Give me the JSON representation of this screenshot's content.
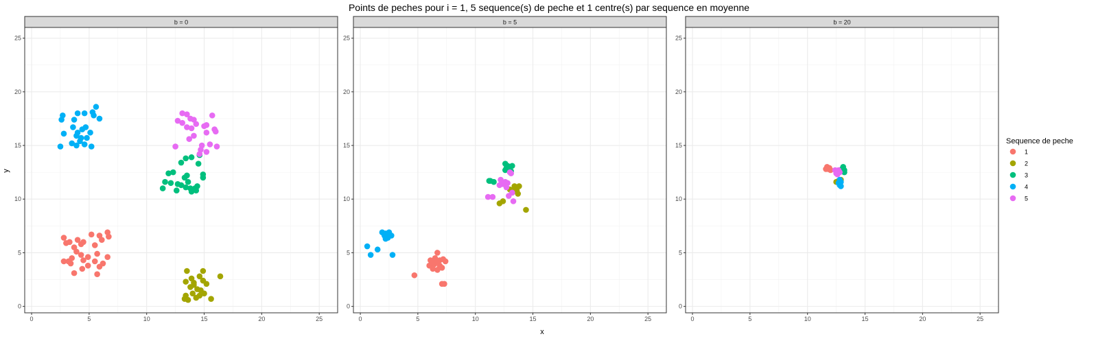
{
  "chart_data": {
    "type": "scatter",
    "title": "Points de peches pour i = 1, 5 sequence(s) de peche et 1 centre(s) par sequence en moyenne",
    "xlabel": "x",
    "ylabel": "y",
    "xlim": [
      -0.6,
      26.6
    ],
    "ylim": [
      -0.6,
      26.0
    ],
    "x_ticks": [
      0,
      5,
      10,
      15,
      20,
      25
    ],
    "y_ticks": [
      0,
      5,
      10,
      15,
      20,
      25
    ],
    "grid": true,
    "legend": {
      "title": "Sequence de peche",
      "placement": "right",
      "entries": [
        "1",
        "2",
        "3",
        "4",
        "5"
      ]
    },
    "colors": {
      "1": "#F8766D",
      "2": "#A3A500",
      "3": "#00BF7D",
      "4": "#00B0F6",
      "5": "#E76BF3"
    },
    "panels": [
      {
        "strip": "b = 0",
        "series": [
          {
            "name": "1",
            "points": [
              [
                2.8,
                6.4
              ],
              [
                3.3,
                6.0
              ],
              [
                4.0,
                6.2
              ],
              [
                4.5,
                6.0
              ],
              [
                5.2,
                6.7
              ],
              [
                5.9,
                6.6
              ],
              [
                6.1,
                6.2
              ],
              [
                6.6,
                6.9
              ],
              [
                6.7,
                6.5
              ],
              [
                3.0,
                5.9
              ],
              [
                3.7,
                5.5
              ],
              [
                4.3,
                5.8
              ],
              [
                5.5,
                5.7
              ],
              [
                3.9,
                5.1
              ],
              [
                4.3,
                4.8
              ],
              [
                4.9,
                4.6
              ],
              [
                5.7,
                4.9
              ],
              [
                2.8,
                4.2
              ],
              [
                3.2,
                4.2
              ],
              [
                3.5,
                4.5
              ],
              [
                4.5,
                4.3
              ],
              [
                5.5,
                4.2
              ],
              [
                6.2,
                4.0
              ],
              [
                6.6,
                4.6
              ],
              [
                3.4,
                4.0
              ],
              [
                4.4,
                3.5
              ],
              [
                5.9,
                3.7
              ],
              [
                3.7,
                3.1
              ],
              [
                5.7,
                3.0
              ],
              [
                4.9,
                3.8
              ]
            ]
          },
          {
            "name": "2",
            "points": [
              [
                13.5,
                3.3
              ],
              [
                14.9,
                3.3
              ],
              [
                13.9,
                2.6
              ],
              [
                14.6,
                2.8
              ],
              [
                14.9,
                2.4
              ],
              [
                16.4,
                2.8
              ],
              [
                13.4,
                2.3
              ],
              [
                14.1,
                2.2
              ],
              [
                15.2,
                2.1
              ],
              [
                13.8,
                1.8
              ],
              [
                14.4,
                1.6
              ],
              [
                14.7,
                1.5
              ],
              [
                14.0,
                1.2
              ],
              [
                14.6,
                1.0
              ],
              [
                13.4,
                1.0
              ],
              [
                15.0,
                1.2
              ],
              [
                15.6,
                0.7
              ],
              [
                13.3,
                0.7
              ],
              [
                14.3,
                0.8
              ],
              [
                13.6,
                0.6
              ],
              [
                14.1,
                2.0
              ]
            ]
          },
          {
            "name": "3",
            "points": [
              [
                13.0,
                13.4
              ],
              [
                13.4,
                13.8
              ],
              [
                13.9,
                13.9
              ],
              [
                14.6,
                14.1
              ],
              [
                14.5,
                13.3
              ],
              [
                11.9,
                12.4
              ],
              [
                12.3,
                12.5
              ],
              [
                13.3,
                12.0
              ],
              [
                13.5,
                12.2
              ],
              [
                14.9,
                12.0
              ],
              [
                14.9,
                12.3
              ],
              [
                11.6,
                11.6
              ],
              [
                12.1,
                11.5
              ],
              [
                12.7,
                11.4
              ],
              [
                13.0,
                11.3
              ],
              [
                13.4,
                11.1
              ],
              [
                13.8,
                11.0
              ],
              [
                14.2,
                11.0
              ],
              [
                14.4,
                11.2
              ],
              [
                11.4,
                11.0
              ],
              [
                12.6,
                10.8
              ],
              [
                13.9,
                10.7
              ],
              [
                14.3,
                10.8
              ],
              [
                13.6,
                11.6
              ]
            ]
          },
          {
            "name": "4",
            "points": [
              [
                2.6,
                17.4
              ],
              [
                2.7,
                17.8
              ],
              [
                3.7,
                17.4
              ],
              [
                4.0,
                18.0
              ],
              [
                4.6,
                18.0
              ],
              [
                5.3,
                18.1
              ],
              [
                5.6,
                18.6
              ],
              [
                5.9,
                17.5
              ],
              [
                3.6,
                16.7
              ],
              [
                4.0,
                16.2
              ],
              [
                4.4,
                16.5
              ],
              [
                4.7,
                16.7
              ],
              [
                5.1,
                16.2
              ],
              [
                2.8,
                16.1
              ],
              [
                3.9,
                15.9
              ],
              [
                4.3,
                15.7
              ],
              [
                4.8,
                15.7
              ],
              [
                3.5,
                15.2
              ],
              [
                3.9,
                15.0
              ],
              [
                4.6,
                15.1
              ],
              [
                5.2,
                14.9
              ],
              [
                2.5,
                14.9
              ],
              [
                4.2,
                15.4
              ],
              [
                5.4,
                17.8
              ]
            ]
          },
          {
            "name": "5",
            "points": [
              [
                13.1,
                18.0
              ],
              [
                13.5,
                17.9
              ],
              [
                13.8,
                17.5
              ],
              [
                15.7,
                17.8
              ],
              [
                14.1,
                17.4
              ],
              [
                14.3,
                17.0
              ],
              [
                12.7,
                17.3
              ],
              [
                13.1,
                17.1
              ],
              [
                15.0,
                16.8
              ],
              [
                15.2,
                16.9
              ],
              [
                15.9,
                16.5
              ],
              [
                16.0,
                16.3
              ],
              [
                13.5,
                16.7
              ],
              [
                13.9,
                16.6
              ],
              [
                15.2,
                16.2
              ],
              [
                14.1,
                15.9
              ],
              [
                13.7,
                15.6
              ],
              [
                15.5,
                15.1
              ],
              [
                14.8,
                15.0
              ],
              [
                16.1,
                14.9
              ],
              [
                12.5,
                14.9
              ],
              [
                14.7,
                14.6
              ],
              [
                14.6,
                14.2
              ],
              [
                15.2,
                14.4
              ]
            ]
          }
        ]
      },
      {
        "strip": "b = 5",
        "series": [
          {
            "name": "1",
            "points": [
              [
                6.7,
                5.0
              ],
              [
                6.1,
                4.3
              ],
              [
                6.5,
                4.5
              ],
              [
                6.9,
                4.3
              ],
              [
                7.2,
                4.4
              ],
              [
                7.4,
                4.2
              ],
              [
                6.0,
                3.8
              ],
              [
                6.4,
                3.9
              ],
              [
                6.9,
                3.8
              ],
              [
                7.1,
                3.6
              ],
              [
                6.3,
                3.5
              ],
              [
                6.7,
                3.4
              ],
              [
                4.7,
                2.9
              ],
              [
                7.1,
                2.1
              ],
              [
                7.3,
                2.1
              ],
              [
                6.6,
                4.1
              ],
              [
                6.2,
                4.1
              ]
            ]
          },
          {
            "name": "2",
            "points": [
              [
                13.4,
                11.2
              ],
              [
                13.8,
                11.2
              ],
              [
                13.0,
                10.9
              ],
              [
                13.6,
                10.8
              ],
              [
                13.2,
                10.6
              ],
              [
                13.7,
                10.5
              ],
              [
                12.4,
                9.8
              ],
              [
                12.1,
                9.6
              ],
              [
                14.4,
                9.0
              ],
              [
                13.4,
                10.8
              ]
            ]
          },
          {
            "name": "3",
            "points": [
              [
                12.6,
                13.3
              ],
              [
                12.8,
                13.1
              ],
              [
                13.2,
                13.1
              ],
              [
                12.9,
                12.8
              ],
              [
                12.6,
                12.7
              ],
              [
                13.1,
                12.6
              ],
              [
                12.7,
                12.9
              ],
              [
                11.2,
                11.7
              ],
              [
                11.6,
                11.6
              ],
              [
                11.3,
                11.7
              ]
            ]
          },
          {
            "name": "4",
            "points": [
              [
                1.9,
                6.9
              ],
              [
                2.2,
                6.8
              ],
              [
                2.5,
                6.9
              ],
              [
                2.1,
                6.6
              ],
              [
                2.4,
                6.7
              ],
              [
                2.7,
                6.6
              ],
              [
                2.2,
                6.3
              ],
              [
                2.4,
                6.4
              ],
              [
                0.6,
                5.6
              ],
              [
                1.5,
                5.3
              ],
              [
                0.9,
                4.8
              ],
              [
                2.8,
                4.8
              ]
            ]
          },
          {
            "name": "5",
            "points": [
              [
                12.2,
                11.8
              ],
              [
                12.6,
                11.6
              ],
              [
                12.4,
                11.4
              ],
              [
                12.8,
                11.5
              ],
              [
                12.1,
                11.3
              ],
              [
                12.7,
                11.1
              ],
              [
                12.3,
                11.5
              ],
              [
                13.1,
                12.4
              ],
              [
                13.2,
                10.6
              ],
              [
                11.1,
                10.2
              ],
              [
                11.5,
                10.2
              ],
              [
                12.9,
                10.3
              ],
              [
                13.3,
                9.8
              ],
              [
                13.0,
                12.5
              ]
            ]
          }
        ]
      },
      {
        "strip": "b = 20",
        "series": [
          {
            "name": "1",
            "points": [
              [
                11.7,
                13.0
              ],
              [
                11.9,
                12.9
              ],
              [
                11.6,
                12.8
              ],
              [
                12.0,
                12.7
              ],
              [
                11.8,
                12.8
              ]
            ]
          },
          {
            "name": "2",
            "points": [
              [
                12.7,
                11.7
              ],
              [
                12.9,
                11.8
              ],
              [
                12.5,
                11.6
              ]
            ]
          },
          {
            "name": "3",
            "points": [
              [
                13.1,
                13.0
              ],
              [
                13.2,
                12.7
              ],
              [
                13.2,
                12.5
              ],
              [
                13.0,
                12.8
              ]
            ]
          },
          {
            "name": "4",
            "points": [
              [
                12.8,
                11.8
              ],
              [
                12.9,
                11.6
              ],
              [
                12.7,
                11.5
              ],
              [
                12.8,
                11.3
              ],
              [
                12.9,
                11.2
              ],
              [
                12.8,
                11.4
              ]
            ]
          },
          {
            "name": "5",
            "points": [
              [
                12.4,
                12.7
              ],
              [
                12.6,
                12.6
              ],
              [
                12.8,
                12.5
              ],
              [
                12.7,
                12.7
              ],
              [
                12.6,
                12.3
              ],
              [
                12.5,
                12.4
              ]
            ]
          }
        ]
      }
    ]
  }
}
